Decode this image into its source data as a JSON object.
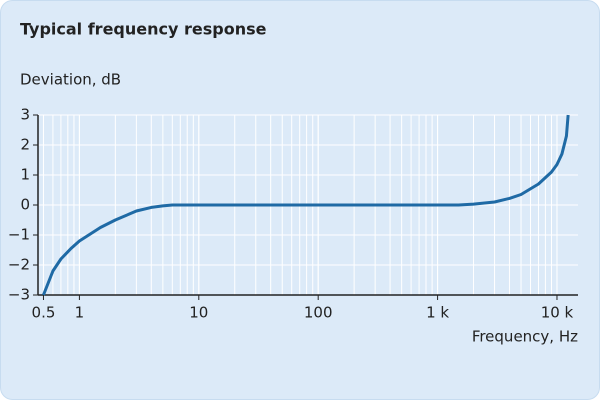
{
  "chart_data": {
    "type": "line",
    "title": "Typical frequency response",
    "y_label": "Deviation, dB",
    "x_label": "Frequency, Hz",
    "log_x": true,
    "grid": true,
    "x": [
      0.5,
      0.6,
      0.7,
      0.85,
      1,
      1.5,
      2,
      3,
      4,
      5,
      6,
      10,
      100,
      1000,
      1500,
      2000,
      3000,
      4000,
      5000,
      7000,
      9000,
      10000,
      11000,
      12000,
      12400
    ],
    "series": [
      {
        "name": "Deviation",
        "color": "#1f6aa5",
        "values": [
          -3,
          -2.2,
          -1.8,
          -1.45,
          -1.2,
          -0.75,
          -0.5,
          -0.2,
          -0.08,
          -0.03,
          0,
          0,
          0,
          0,
          0,
          0.03,
          0.1,
          0.22,
          0.35,
          0.7,
          1.1,
          1.35,
          1.7,
          2.3,
          3
        ]
      }
    ],
    "xlim": [
      0.45,
      15000
    ],
    "xticks": [
      0.5,
      1,
      10,
      100,
      {
        "value": 1000,
        "label": "1 k"
      },
      {
        "value": 10000,
        "label": "10 k"
      }
    ],
    "ylim": [
      -3,
      3
    ],
    "yticks": [
      {
        "value": -3,
        "label": "−3"
      },
      {
        "value": -2,
        "label": "−2"
      },
      {
        "value": -1,
        "label": "−1"
      },
      0,
      1,
      2,
      3
    ]
  }
}
